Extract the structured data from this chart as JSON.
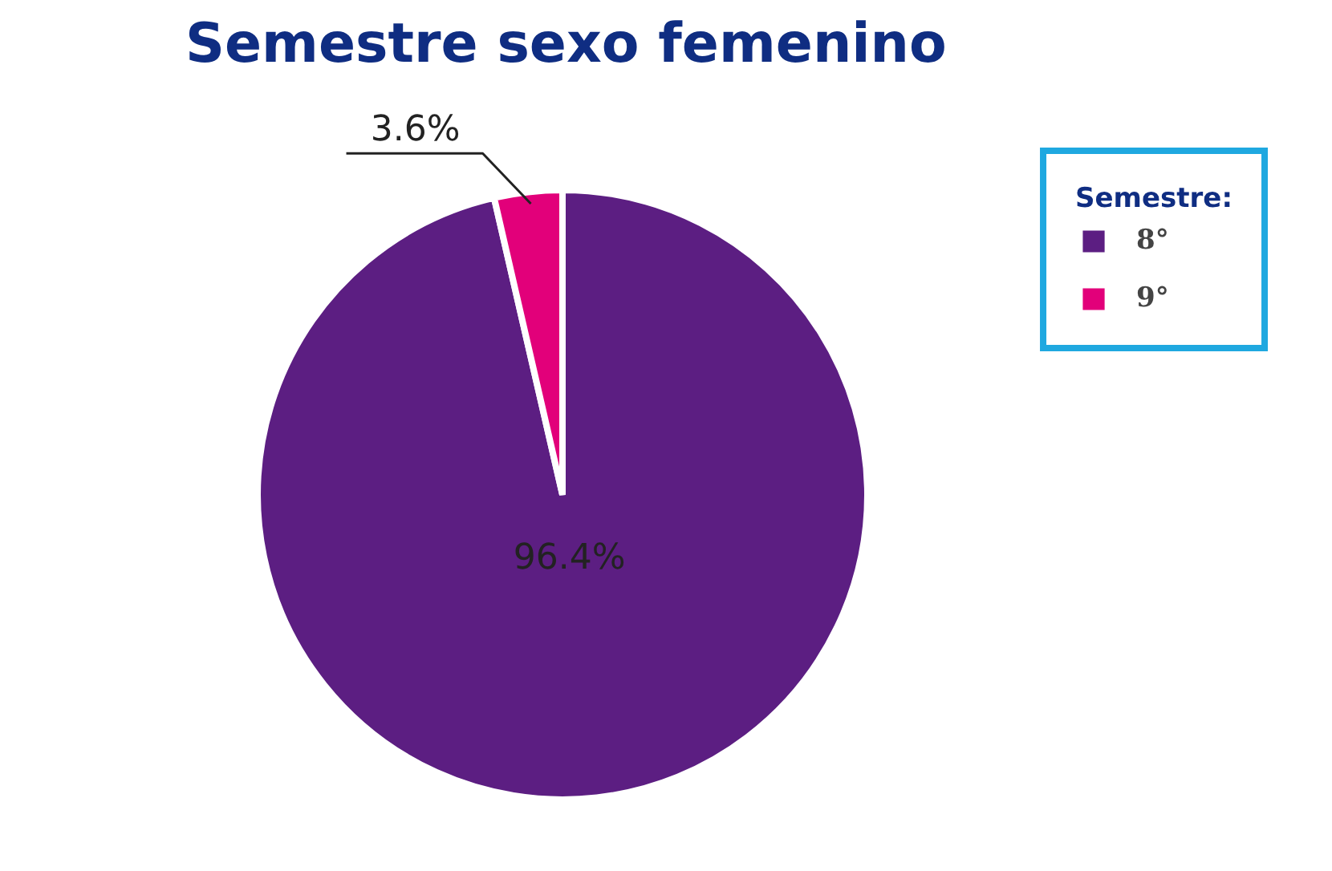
{
  "chart_data": {
    "type": "pie",
    "title": "Semestre sexo femenino",
    "legend_title": "Semestre:",
    "categories": [
      "8°",
      "9°"
    ],
    "values": [
      96.4,
      3.6
    ],
    "colors": [
      "#5c1e82",
      "#e2007a"
    ],
    "value_labels": [
      "96.4%",
      "3.6%"
    ],
    "legend": "right"
  }
}
